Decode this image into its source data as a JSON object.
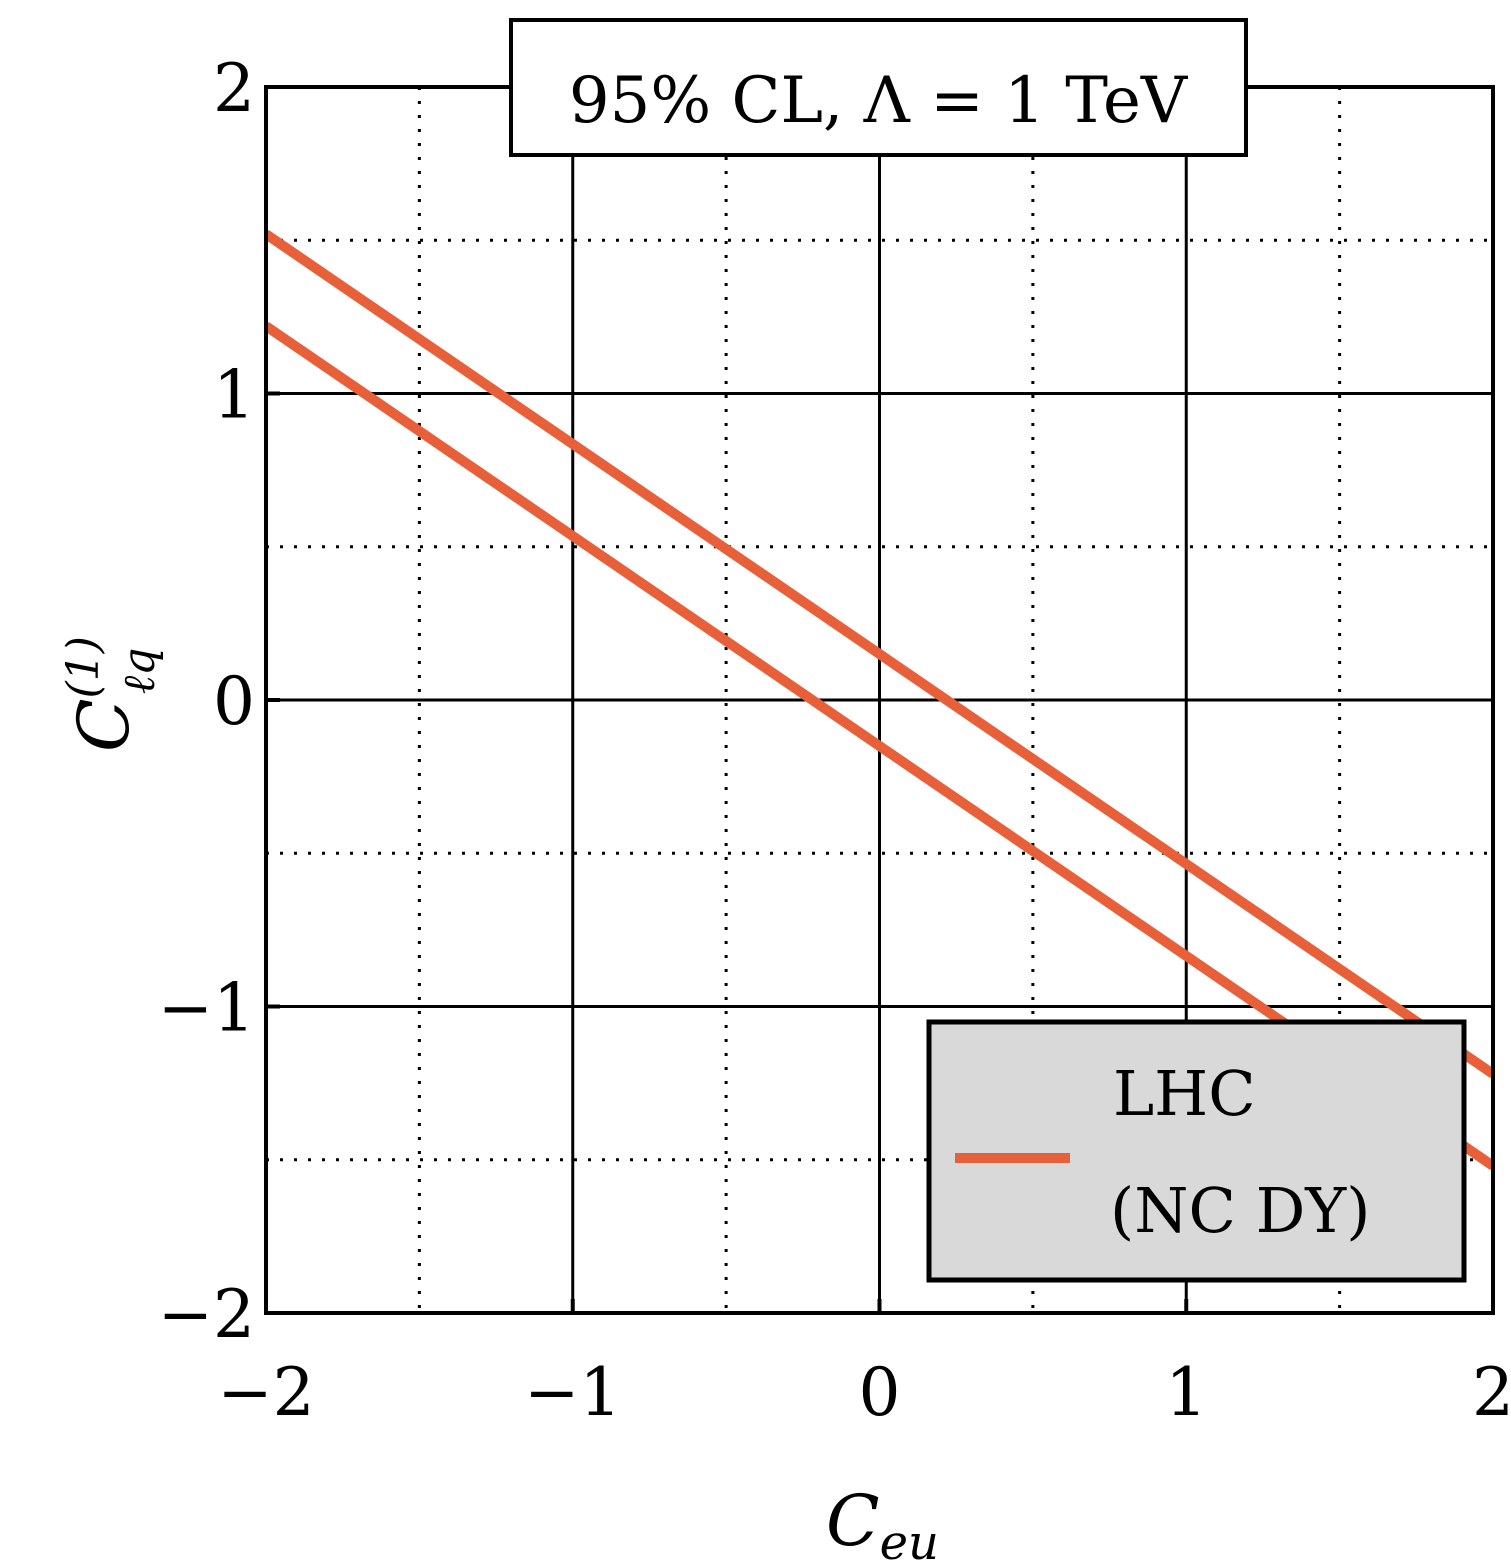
{
  "chart_data": {
    "type": "line",
    "title": "95% CL, Λ = 1 TeV",
    "xlabel": {
      "base": "C",
      "sub": "eu"
    },
    "ylabel": {
      "base": "C",
      "sub": "ℓq",
      "sup": "(1)"
    },
    "xlim": [
      -2,
      2
    ],
    "ylim": [
      -2,
      2
    ],
    "xticks": [
      -2,
      -1,
      0,
      1,
      2
    ],
    "yticks": [
      -2,
      -1,
      0,
      1,
      2
    ],
    "xtick_labels": [
      "−2",
      "−1",
      "0",
      "1",
      "2"
    ],
    "ytick_labels": [
      "−2",
      "−1",
      "0",
      "1",
      "2"
    ],
    "grid": {
      "major": "solid",
      "minor": "dotted"
    },
    "legend": {
      "placement": "bottom-right",
      "lines": [
        "LHC",
        "(NC DY)"
      ]
    },
    "series": [
      {
        "name": "LHC (NC DY)",
        "color": "#e8603a",
        "x": [
          -2,
          2
        ],
        "y": [
          1.52,
          -1.22
        ]
      },
      {
        "name": "LHC (NC DY)",
        "color": "#e8603a",
        "x": [
          -2,
          2
        ],
        "y": [
          1.22,
          -1.52
        ]
      }
    ]
  },
  "colors": {
    "line": "#e8603a",
    "legend_bg": "#d9d9d9"
  }
}
